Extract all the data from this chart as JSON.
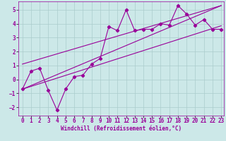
{
  "xlabel": "Windchill (Refroidissement éolien,°C)",
  "xlim": [
    -0.5,
    23.3
  ],
  "ylim": [
    -2.6,
    5.6
  ],
  "yticks": [
    -2,
    -1,
    0,
    1,
    2,
    3,
    4,
    5
  ],
  "xticks": [
    0,
    1,
    2,
    3,
    4,
    5,
    6,
    7,
    8,
    9,
    10,
    11,
    12,
    13,
    14,
    15,
    16,
    17,
    18,
    19,
    20,
    21,
    22,
    23
  ],
  "data_x": [
    0,
    1,
    2,
    3,
    4,
    5,
    6,
    7,
    8,
    9,
    10,
    11,
    12,
    13,
    14,
    15,
    16,
    17,
    18,
    19,
    20,
    21,
    22,
    23
  ],
  "data_y": [
    -0.7,
    0.6,
    0.8,
    -0.8,
    -2.2,
    -0.7,
    0.2,
    0.3,
    1.1,
    1.5,
    3.8,
    3.5,
    5.0,
    3.5,
    3.6,
    3.6,
    4.0,
    3.9,
    5.3,
    4.7,
    3.9,
    4.3,
    3.6,
    3.6
  ],
  "line1_x": [
    0,
    23
  ],
  "line1_y": [
    -0.7,
    3.85
  ],
  "line2_x": [
    0,
    23
  ],
  "line2_y": [
    1.1,
    5.3
  ],
  "line3_x": [
    0,
    23
  ],
  "line3_y": [
    -0.7,
    5.3
  ],
  "color": "#990099",
  "bg_color": "#cce8e8",
  "grid_color": "#aacccc",
  "marker": "D",
  "marker_size": 2.2,
  "line_width": 0.8,
  "xlabel_fontsize": 5.5,
  "tick_fontsize": 5.5
}
